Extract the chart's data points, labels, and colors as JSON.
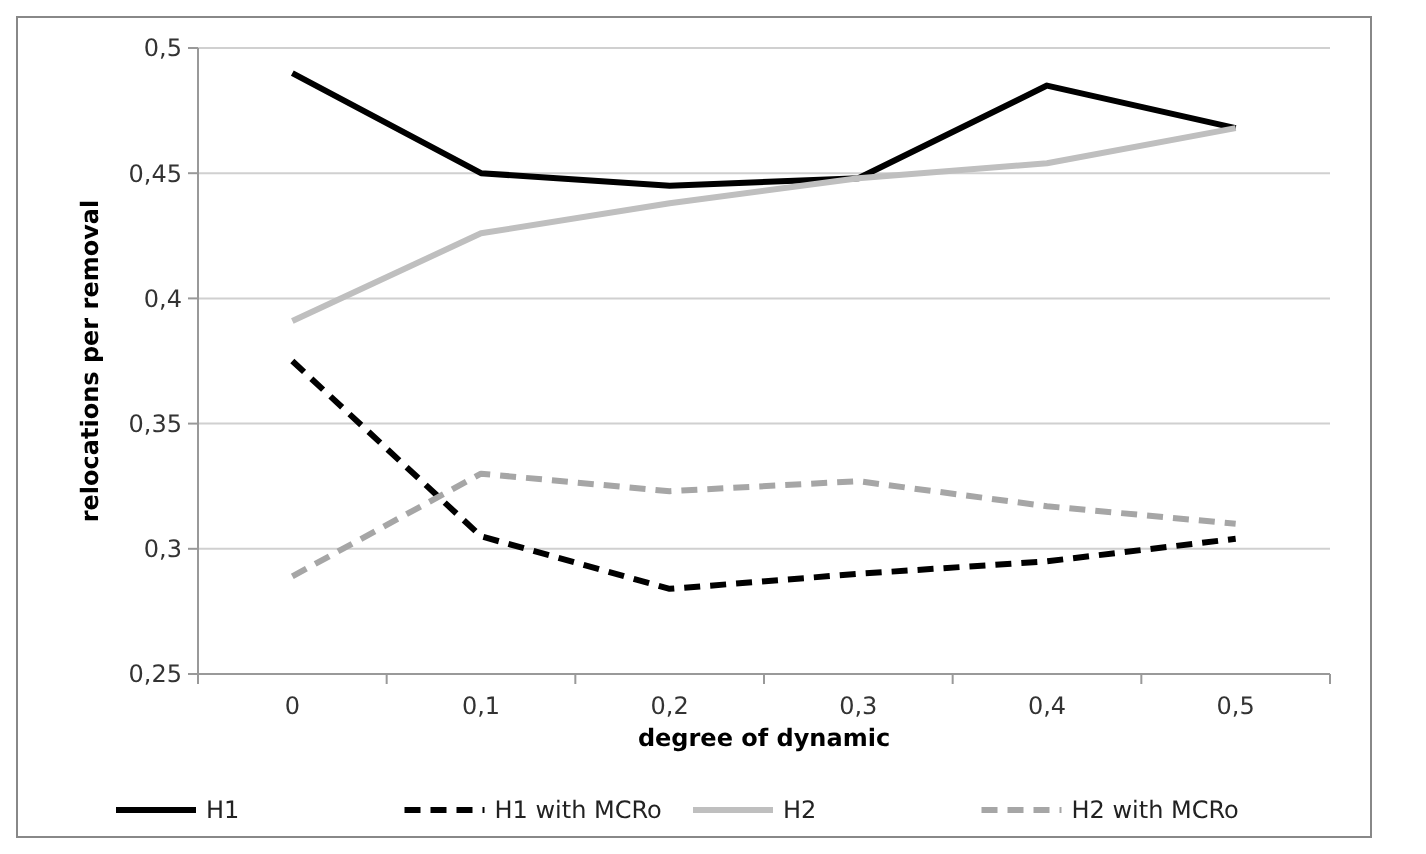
{
  "chart_data": {
    "type": "line",
    "xlabel": "degree of dynamic",
    "ylabel": "relocations per removal",
    "categories": [
      "0",
      "0,1",
      "0,2",
      "0,3",
      "0,4",
      "0,5"
    ],
    "ylim": [
      0.25,
      0.5
    ],
    "yticks": [
      {
        "value": 0.25,
        "label": "0,25"
      },
      {
        "value": 0.3,
        "label": "0,3"
      },
      {
        "value": 0.35,
        "label": "0,35"
      },
      {
        "value": 0.4,
        "label": "0,4"
      },
      {
        "value": 0.45,
        "label": "0,45"
      },
      {
        "value": 0.5,
        "label": "0,5"
      }
    ],
    "grid": "y",
    "legend": "bottom",
    "marker": "none",
    "series": [
      {
        "name": "H1",
        "color": "#000000",
        "line_style": "solid",
        "values": [
          0.49,
          0.45,
          0.445,
          0.448,
          0.485,
          0.468
        ]
      },
      {
        "name": "H1 with MCRo",
        "color": "#000000",
        "line_style": "dashed",
        "values": [
          0.375,
          0.305,
          0.284,
          0.29,
          0.295,
          0.304
        ]
      },
      {
        "name": "H2",
        "color": "#bfbfbf",
        "line_style": "solid",
        "values": [
          0.391,
          0.426,
          0.438,
          0.448,
          0.454,
          0.468
        ]
      },
      {
        "name": "H2 with MCRo",
        "color": "#a6a6a6",
        "line_style": "dashed",
        "values": [
          0.289,
          0.33,
          0.323,
          0.327,
          0.317,
          0.31
        ]
      }
    ]
  }
}
